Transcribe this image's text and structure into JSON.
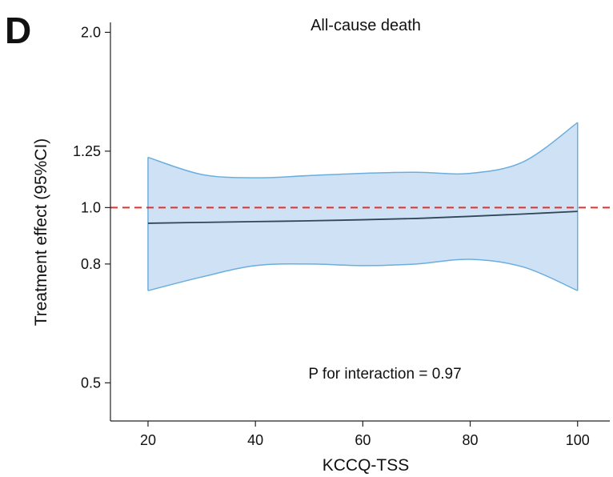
{
  "panel_label": "D",
  "chart_data": {
    "type": "line",
    "title": "All-cause death",
    "xlabel": "KCCQ-TSS",
    "ylabel": "Treatment effect (95%CI)",
    "y_scale": "log",
    "xlim": [
      13,
      106
    ],
    "ylim": [
      0.43,
      2.08
    ],
    "x_ticks": [
      20,
      40,
      60,
      80,
      100
    ],
    "x_tick_labels": [
      "20",
      "40",
      "60",
      "80",
      "100"
    ],
    "y_ticks": [
      0.5,
      0.8,
      1.0,
      1.25,
      2.0
    ],
    "y_tick_labels": [
      "0.5",
      "0.8",
      "1.0",
      "1.25",
      "2.0"
    ],
    "reference_line": {
      "y": 1.0,
      "color": "#e0332f",
      "style": "dashed"
    },
    "series": [
      {
        "x": [
          20,
          30,
          40,
          50,
          60,
          70,
          80,
          90,
          100
        ],
        "estimate": [
          0.94,
          0.943,
          0.946,
          0.949,
          0.953,
          0.958,
          0.966,
          0.975,
          0.985
        ],
        "lower": [
          0.72,
          0.76,
          0.795,
          0.8,
          0.795,
          0.8,
          0.815,
          0.79,
          0.72
        ],
        "upper": [
          1.22,
          1.14,
          1.125,
          1.135,
          1.145,
          1.15,
          1.145,
          1.2,
          1.4
        ]
      }
    ],
    "colors": {
      "band_fill": "#cfe2f5",
      "band_edge": "#6aaedd",
      "line": "#2f4756",
      "axis": "#222222"
    },
    "annotation": "P for interaction = 0.97"
  }
}
